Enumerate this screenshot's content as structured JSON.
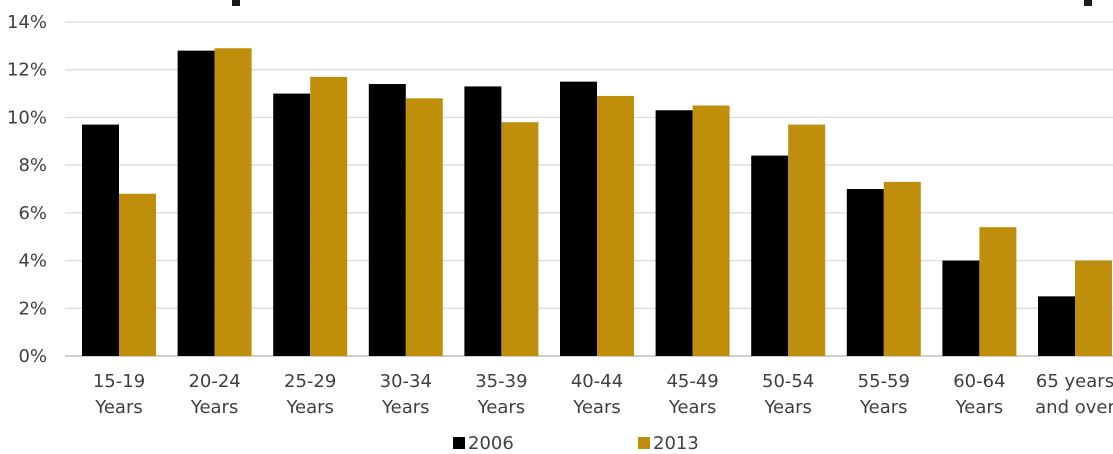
{
  "chart_data": {
    "type": "bar",
    "categories": [
      [
        "15-19",
        "Years"
      ],
      [
        "20-24",
        "Years"
      ],
      [
        "25-29",
        "Years"
      ],
      [
        "30-34",
        "Years"
      ],
      [
        "35-39",
        "Years"
      ],
      [
        "40-44",
        "Years"
      ],
      [
        "45-49",
        "Years"
      ],
      [
        "50-54",
        "Years"
      ],
      [
        "55-59",
        "Years"
      ],
      [
        "60-64",
        "Years"
      ],
      [
        "65 years",
        "and over"
      ]
    ],
    "series": [
      {
        "name": "2006",
        "color": "#000000",
        "values": [
          9.7,
          12.8,
          11.0,
          11.4,
          11.3,
          11.5,
          10.3,
          8.4,
          7.0,
          4.0,
          2.5
        ]
      },
      {
        "name": "2013",
        "color": "#bf8f0c",
        "values": [
          6.8,
          12.9,
          11.7,
          10.8,
          9.8,
          10.9,
          10.5,
          9.7,
          7.3,
          5.4,
          4.0
        ]
      }
    ],
    "ylim": [
      0,
      14
    ],
    "yticks": [
      "0%",
      "2%",
      "4%",
      "6%",
      "8%",
      "10%",
      "12%",
      "14%"
    ],
    "ytick_values": [
      0,
      2,
      4,
      6,
      8,
      10,
      12,
      14
    ],
    "grid": true,
    "legend_position": "bottom"
  }
}
